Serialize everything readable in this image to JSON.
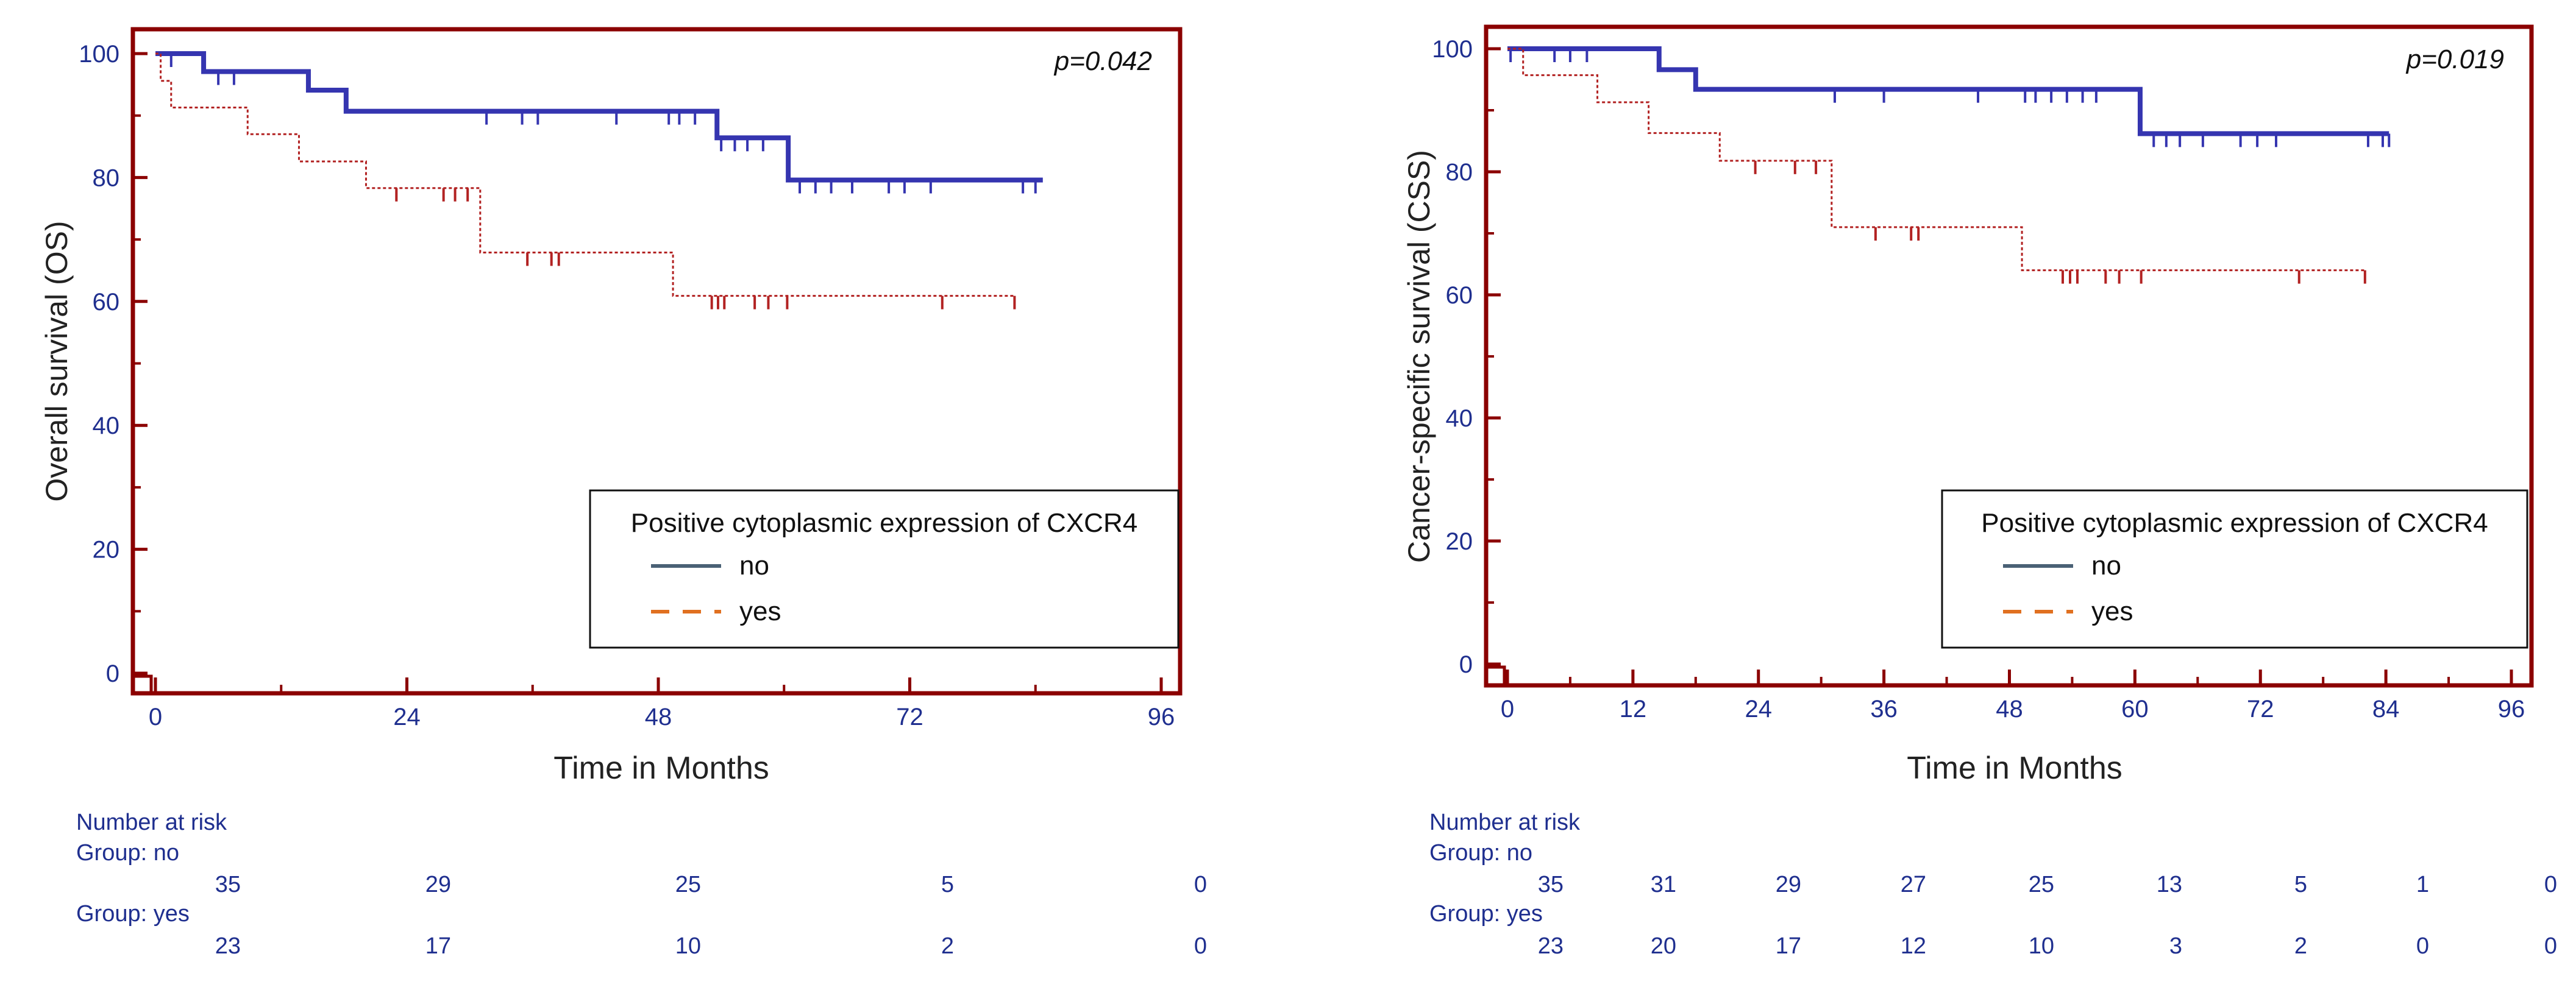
{
  "colors": {
    "frame": "#8b0000",
    "tick_text": "#1f2f8f",
    "no_curve": "#3535b0",
    "yes_curve": "#b22222",
    "legend_no": "#4a6175",
    "legend_yes": "#e07020"
  },
  "chart_data": [
    {
      "type": "line",
      "subtype": "kaplan-meier",
      "title": "",
      "xlabel": "Time in Months",
      "ylabel": "Overall survival (OS)",
      "annotation": "p=0.042",
      "xlim": [
        0,
        96
      ],
      "ylim": [
        0,
        100
      ],
      "x_ticks": [
        0,
        24,
        48,
        72,
        96
      ],
      "x_minor_ticks": [
        12,
        36,
        60,
        84
      ],
      "y_ticks": [
        0,
        20,
        40,
        60,
        80,
        100
      ],
      "y_minor_ticks": [
        10,
        30,
        50,
        70,
        90
      ],
      "grid": false,
      "legend": {
        "title": "Positive cytoplasmic expression of CXCR4",
        "position": "bottom-right",
        "entries": [
          "no",
          "yes"
        ]
      },
      "series": [
        {
          "name": "no",
          "line_style": "solid",
          "steps": [
            [
              0,
              100
            ],
            [
              4.6,
              97.1
            ],
            [
              14.6,
              94.1
            ],
            [
              18.2,
              90.7
            ],
            [
              53.6,
              86.4
            ],
            [
              60.4,
              79.6
            ],
            [
              84.7,
              79.6
            ]
          ],
          "censors": [
            [
              1.5,
              100
            ],
            [
              6,
              97.1
            ],
            [
              7.5,
              97.1
            ],
            [
              31.6,
              90.7
            ],
            [
              35,
              90.7
            ],
            [
              36.5,
              90.7
            ],
            [
              44,
              90.7
            ],
            [
              49,
              90.7
            ],
            [
              50,
              90.7
            ],
            [
              51.5,
              90.7
            ],
            [
              54,
              86.4
            ],
            [
              55.3,
              86.4
            ],
            [
              56.5,
              86.4
            ],
            [
              58,
              86.4
            ],
            [
              61.5,
              79.6
            ],
            [
              63,
              79.6
            ],
            [
              64.5,
              79.6
            ],
            [
              66.5,
              79.6
            ],
            [
              70,
              79.6
            ],
            [
              71.5,
              79.6
            ],
            [
              74,
              79.6
            ],
            [
              82.8,
              79.6
            ],
            [
              84,
              79.6
            ]
          ]
        },
        {
          "name": "yes",
          "line_style": "dashed",
          "steps": [
            [
              0,
              100
            ],
            [
              0.5,
              95.6
            ],
            [
              1.5,
              91.3
            ],
            [
              8.8,
              87
            ],
            [
              13.7,
              82.6
            ],
            [
              20.1,
              78.3
            ],
            [
              31,
              67.9
            ],
            [
              49.4,
              60.9
            ],
            [
              82,
              60.9
            ]
          ],
          "censors": [
            [
              23,
              78.3
            ],
            [
              27.5,
              78.3
            ],
            [
              28.6,
              78.3
            ],
            [
              29.8,
              78.3
            ],
            [
              35.5,
              67.9
            ],
            [
              37.8,
              67.9
            ],
            [
              38.5,
              67.9
            ],
            [
              53.1,
              60.9
            ],
            [
              53.7,
              60.9
            ],
            [
              54.3,
              60.9
            ],
            [
              57.2,
              60.9
            ],
            [
              58.5,
              60.9
            ],
            [
              60.3,
              60.9
            ],
            [
              75.1,
              60.9
            ],
            [
              82,
              60.9
            ]
          ]
        }
      ],
      "risk_table": {
        "heading": "Number at risk",
        "groups": [
          {
            "label": "Group: no",
            "counts": [
              "35",
              "29",
              "25",
              "5",
              "0"
            ]
          },
          {
            "label": "Group: yes",
            "counts": [
              "23",
              "17",
              "10",
              "2",
              "0"
            ]
          }
        ],
        "times": [
          0,
          24,
          48,
          72,
          96
        ]
      }
    },
    {
      "type": "line",
      "subtype": "kaplan-meier",
      "title": "",
      "xlabel": "Time in Months",
      "ylabel": "Cancer-specific survival (CSS)",
      "annotation": "p=0.019",
      "xlim": [
        0,
        96
      ],
      "ylim": [
        0,
        100
      ],
      "x_ticks": [
        0,
        12,
        24,
        36,
        48,
        60,
        72,
        84,
        96
      ],
      "x_minor_ticks": [
        6,
        18,
        30,
        42,
        54,
        66,
        78,
        90
      ],
      "y_ticks": [
        0,
        20,
        40,
        60,
        80,
        100
      ],
      "y_minor_ticks": [
        10,
        30,
        50,
        70,
        90
      ],
      "grid": false,
      "legend": {
        "title": "Positive cytoplasmic expression of CXCR4",
        "position": "bottom-right",
        "entries": [
          "no",
          "yes"
        ]
      },
      "series": [
        {
          "name": "no",
          "line_style": "solid",
          "steps": [
            [
              0,
              100
            ],
            [
              14.5,
              96.6
            ],
            [
              18,
              93.4
            ],
            [
              60.5,
              86.2
            ],
            [
              84.3,
              86.2
            ]
          ],
          "censors": [
            [
              0.3,
              100
            ],
            [
              4.5,
              100
            ],
            [
              6,
              100
            ],
            [
              7.6,
              100
            ],
            [
              31.3,
              93.4
            ],
            [
              36,
              93.4
            ],
            [
              45,
              93.4
            ],
            [
              49.5,
              93.4
            ],
            [
              50.5,
              93.4
            ],
            [
              52,
              93.4
            ],
            [
              53.5,
              93.4
            ],
            [
              55,
              93.4
            ],
            [
              56.3,
              93.4
            ],
            [
              61.8,
              86.2
            ],
            [
              63,
              86.2
            ],
            [
              64.3,
              86.2
            ],
            [
              66.5,
              86.2
            ],
            [
              70.1,
              86.2
            ],
            [
              71.7,
              86.2
            ],
            [
              73.5,
              86.2
            ],
            [
              82.3,
              86.2
            ],
            [
              83.7,
              86.2
            ],
            [
              84.3,
              86.2
            ]
          ]
        },
        {
          "name": "yes",
          "line_style": "dashed",
          "steps": [
            [
              0,
              100
            ],
            [
              1.5,
              95.7
            ],
            [
              8.6,
              91.3
            ],
            [
              13.5,
              86.3
            ],
            [
              20.3,
              81.8
            ],
            [
              31,
              71
            ],
            [
              49.2,
              64
            ],
            [
              82,
              64
            ]
          ],
          "censors": [
            [
              23.7,
              81.8
            ],
            [
              27.5,
              81.8
            ],
            [
              29.5,
              81.8
            ],
            [
              35.2,
              71
            ],
            [
              38.6,
              71
            ],
            [
              39.3,
              71
            ],
            [
              53.1,
              64
            ],
            [
              53.8,
              64
            ],
            [
              54.5,
              64
            ],
            [
              57.2,
              64
            ],
            [
              58.5,
              64
            ],
            [
              60.6,
              64
            ],
            [
              75.7,
              64
            ],
            [
              82,
              64
            ]
          ]
        }
      ],
      "risk_table": {
        "heading": "Number at risk",
        "groups": [
          {
            "label": "Group: no",
            "counts": [
              "35",
              "31",
              "29",
              "27",
              "25",
              "13",
              "5",
              "1",
              "0"
            ]
          },
          {
            "label": "Group: yes",
            "counts": [
              "23",
              "20",
              "17",
              "12",
              "10",
              "3",
              "2",
              "0",
              "0"
            ]
          }
        ],
        "times": [
          0,
          12,
          24,
          36,
          48,
          60,
          72,
          84,
          96
        ]
      }
    }
  ]
}
